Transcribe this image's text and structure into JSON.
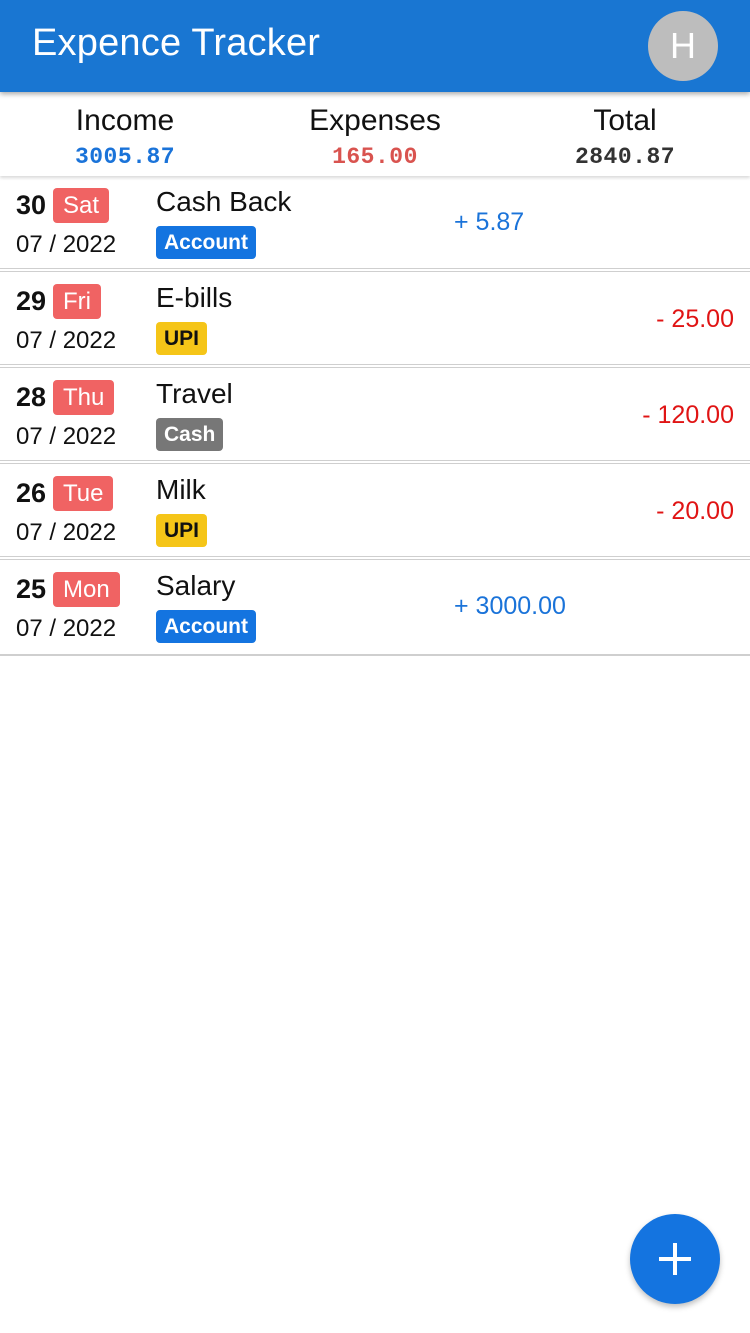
{
  "app": {
    "title": "Expence Tracker",
    "avatar_initial": "H"
  },
  "summary": {
    "income_label": "Income",
    "income_value": "3005.87",
    "expenses_label": "Expenses",
    "expenses_value": "165.00",
    "total_label": "Total",
    "total_value": "2840.87"
  },
  "colors": {
    "appbar": "#1976d2",
    "income": "#1a73d9",
    "expense": "#e01414",
    "weekday_badge": "#f06363",
    "tag_account": "#1474e0",
    "tag_upi": "#f5c518",
    "tag_cash": "#777777"
  },
  "transactions": [
    {
      "day": "30",
      "weekday": "Sat",
      "month_year": "07 / 2022",
      "description": "Cash Back",
      "tag": "Account",
      "amount": "+ 5.87",
      "type": "income"
    },
    {
      "day": "29",
      "weekday": "Fri",
      "month_year": "07 / 2022",
      "description": "E-bills",
      "tag": "UPI",
      "amount": "- 25.00",
      "type": "expense"
    },
    {
      "day": "28",
      "weekday": "Thu",
      "month_year": "07 / 2022",
      "description": "Travel",
      "tag": "Cash",
      "amount": "- 120.00",
      "type": "expense"
    },
    {
      "day": "26",
      "weekday": "Tue",
      "month_year": "07 / 2022",
      "description": "Milk",
      "tag": "UPI",
      "amount": "- 20.00",
      "type": "expense"
    },
    {
      "day": "25",
      "weekday": "Mon",
      "month_year": "07 / 2022",
      "description": "Salary",
      "tag": "Account",
      "amount": "+ 3000.00",
      "type": "income"
    }
  ],
  "fab": {
    "icon": "plus-icon"
  }
}
